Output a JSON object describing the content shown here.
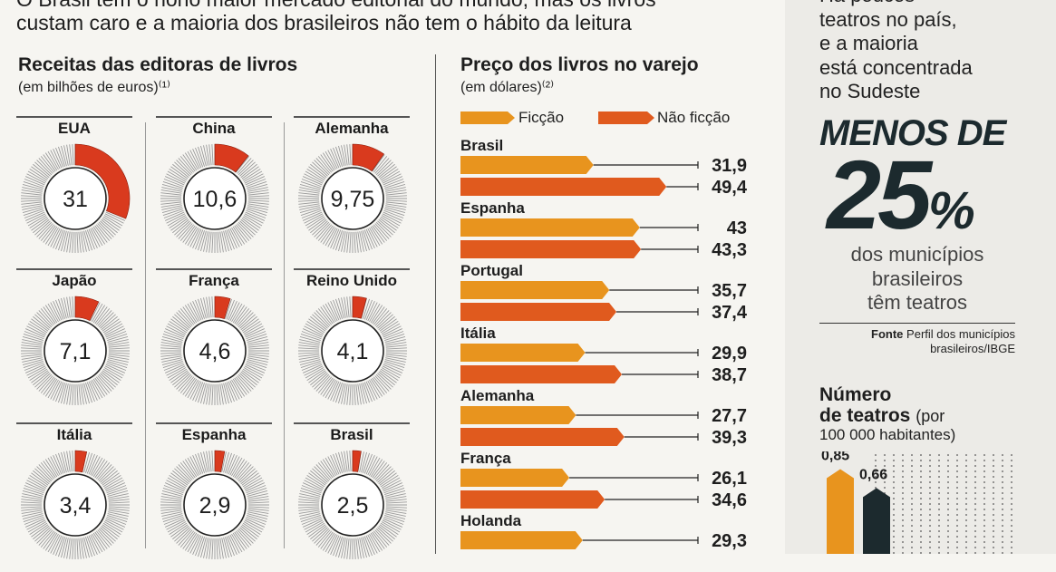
{
  "intro": {
    "line1": "O Brasil tem o nono maior mercado editorial do mundo, mas os livros",
    "line2": "custam caro e a maioria dos brasileiros não tem o hábito da leitura"
  },
  "revenue": {
    "title": "Receitas das editoras de livros",
    "subtitle": "(em bilhões de euros)⁽¹⁾",
    "accent_color": "#d93a1e"
  },
  "price": {
    "title": "Preço dos livros no varejo",
    "subtitle": "(em dólares)⁽²⁾"
  },
  "right_panel": {
    "top_lines": [
      "Há poucos",
      "teatros no país,",
      "e a maioria",
      "está concentrada",
      "no Sudeste"
    ],
    "big_prefix": "MENOS DE",
    "big_number": "25",
    "big_percent": "%",
    "big_caption": [
      "dos municípios",
      "brasileiros",
      "têm teatros"
    ],
    "source_label": "Fonte",
    "source_text": "Perfil dos municípios",
    "source_text2": "brasileiros/IBGE",
    "theaters_title_1": "Número",
    "theaters_title_2": "de teatros",
    "theaters_title_3": "(por",
    "theaters_subtitle": "100 000 habitantes)"
  },
  "chart_data": [
    {
      "type": "pie",
      "title": "Receitas das editoras de livros",
      "subtitle": "(em bilhões de euros)⁽¹⁾",
      "categories": [
        "EUA",
        "China",
        "Alemanha",
        "Japão",
        "França",
        "Reino Unido",
        "Itália",
        "Espanha",
        "Brasil"
      ],
      "values": [
        31,
        10.6,
        9.75,
        7.1,
        4.6,
        4.1,
        3.4,
        2.9,
        2.5
      ],
      "value_labels": [
        "31",
        "10,6",
        "9,75",
        "7,1",
        "4,6",
        "4,1",
        "3,4",
        "2,9",
        "2,5"
      ],
      "scale_max": 100
    },
    {
      "type": "bar",
      "orientation": "horizontal",
      "title": "Preço dos livros no varejo",
      "subtitle": "(em dólares)⁽²⁾",
      "categories": [
        "Brasil",
        "Espanha",
        "Portugal",
        "Itália",
        "Alemanha",
        "França",
        "Holanda"
      ],
      "series": [
        {
          "name": "Ficção",
          "color": "#e8941e",
          "values": [
            31.9,
            43,
            35.7,
            29.9,
            27.7,
            26.1,
            29.3
          ],
          "labels": [
            "31,9",
            "43",
            "35,7",
            "29,9",
            "27,7",
            "26,1",
            "29,3"
          ]
        },
        {
          "name": "Não ficção",
          "color": "#e05a1e",
          "values": [
            49.4,
            43.3,
            37.4,
            38.7,
            39.3,
            34.6,
            null
          ],
          "labels": [
            "49,4",
            "43,3",
            "37,4",
            "38,7",
            "39,3",
            "34,6",
            ""
          ]
        }
      ],
      "legend": "top"
    },
    {
      "type": "bar",
      "title": "Número de teatros (por 100 000 habitantes)",
      "values": [
        0.85,
        0.66
      ],
      "labels": [
        "0,85",
        "0,66"
      ],
      "colors": [
        "#e8941e",
        "#1c2a2e"
      ]
    }
  ]
}
